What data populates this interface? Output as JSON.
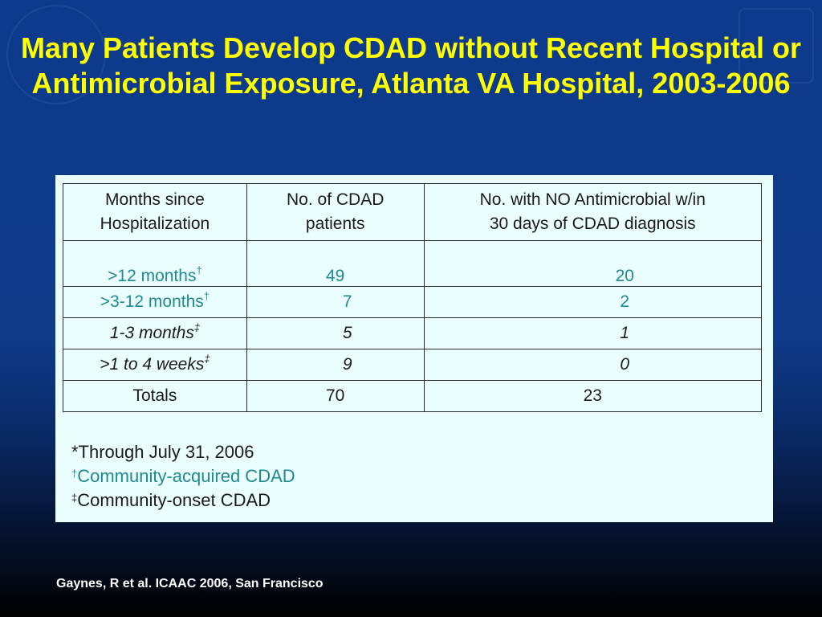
{
  "title": "Many Patients Develop CDAD without Recent Hospital or Antimicrobial Exposure, Atlanta VA Hospital, 2003-2006",
  "table": {
    "headers": [
      [
        "Months since",
        "Hospitalization"
      ],
      [
        "No. of CDAD",
        "patients"
      ],
      [
        "No. with NO Antimicrobial w/in",
        "30 days of CDAD diagnosis"
      ]
    ],
    "rows": [
      {
        "label": ">12 months",
        "mark": "†",
        "patients": "49",
        "no_antimicrobial": "20"
      },
      {
        "label": ">3-12 months",
        "mark": "†",
        "patients": "7",
        "no_antimicrobial": "2"
      },
      {
        "label": "1-3 months",
        "mark": "‡",
        "patients": "5",
        "no_antimicrobial": "1"
      },
      {
        "label": ">1 to 4 weeks",
        "mark": "‡",
        "patients": "9",
        "no_antimicrobial": "0"
      }
    ],
    "totals": {
      "label": "Totals",
      "patients": "70",
      "no_antimicrobial": "23"
    }
  },
  "notes": {
    "n1": "*Through July 31, 2006",
    "n2_mark": "†",
    "n2": "Community-acquired CDAD",
    "n3_mark": "‡",
    "n3": "Community-onset CDAD"
  },
  "source": "Gaynes, R et al. ICAAC 2006, San Francisco",
  "colors": {
    "title": "#ffff00",
    "teal_text": "#1f8a8f",
    "panel_bg": "#eafefe",
    "slide_bg": "#0d3a8c"
  }
}
